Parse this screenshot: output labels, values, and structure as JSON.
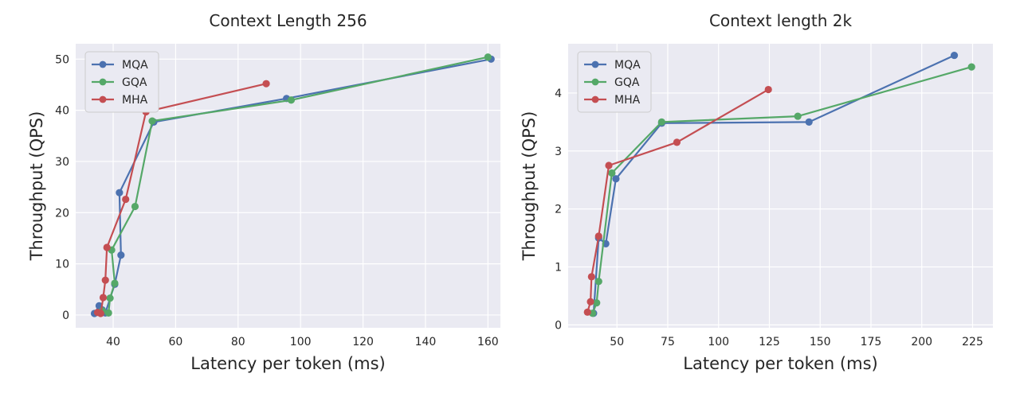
{
  "chart_data": [
    {
      "type": "line",
      "title": "Context Length 256",
      "xlabel": "Latency per token (ms)",
      "ylabel": "Throughput (QPS)",
      "xlim": [
        28,
        164
      ],
      "ylim": [
        -2.5,
        53
      ],
      "xticks": [
        40,
        60,
        80,
        100,
        120,
        140,
        160
      ],
      "yticks": [
        0,
        10,
        20,
        30,
        40,
        50
      ],
      "legend_position": "top-left",
      "series": [
        {
          "name": "MQA",
          "color": "#4c72b0",
          "x": [
            34,
            35.5,
            36.5,
            37.5,
            40.5,
            42.5,
            42,
            53,
            95.5,
            161
          ],
          "y": [
            0.3,
            1.8,
            1.0,
            0.4,
            6.0,
            11.7,
            23.9,
            37.7,
            42.3,
            50
          ]
        },
        {
          "name": "GQA",
          "color": "#55a868",
          "x": [
            36.5,
            38.5,
            39,
            40.5,
            39.5,
            47,
            52.5,
            97,
            160
          ],
          "y": [
            0.8,
            0.4,
            3.3,
            6.2,
            12.7,
            21.2,
            37.9,
            42,
            50.4
          ]
        },
        {
          "name": "MHA",
          "color": "#c44e52",
          "x": [
            35,
            36,
            36.8,
            37.5,
            38,
            44,
            50.5,
            89
          ],
          "y": [
            0.5,
            0.3,
            3.4,
            6.8,
            13.2,
            22.6,
            39.7,
            45.2
          ]
        }
      ]
    },
    {
      "type": "line",
      "title": "Context length 2k",
      "xlabel": "Latency per token (ms)",
      "ylabel": "Throughput (QPS)",
      "xlim": [
        26,
        235
      ],
      "ylim": [
        -0.05,
        4.85
      ],
      "xticks": [
        50,
        75,
        100,
        125,
        150,
        175,
        200,
        225
      ],
      "yticks": [
        0,
        1,
        2,
        3,
        4
      ],
      "legend_position": "top-left",
      "series": [
        {
          "name": "MQA",
          "color": "#4c72b0",
          "x": [
            38.5,
            41,
            44.5,
            49.5,
            72,
            144.5,
            216
          ],
          "y": [
            0.2,
            1.5,
            1.4,
            2.52,
            3.48,
            3.5,
            4.65
          ]
        },
        {
          "name": "GQA",
          "color": "#55a868",
          "x": [
            38,
            40,
            41,
            47.5,
            72,
            139,
            224.5
          ],
          "y": [
            0.2,
            0.38,
            0.75,
            2.62,
            3.5,
            3.6,
            4.45
          ]
        },
        {
          "name": "MHA",
          "color": "#c44e52",
          "x": [
            35.5,
            37,
            37.5,
            41,
            46,
            79.5,
            124.5
          ],
          "y": [
            0.22,
            0.4,
            0.83,
            1.53,
            2.75,
            3.15,
            4.06
          ]
        }
      ]
    }
  ]
}
